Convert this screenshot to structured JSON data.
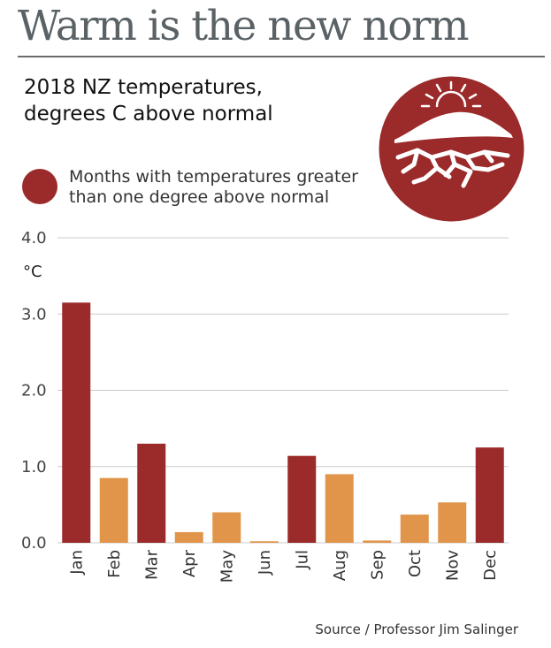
{
  "headline": "Warm is the new norm",
  "subtitle": "2018 NZ temperatures, degrees C above normal",
  "legend": {
    "label": "Months with temperatures greater than one degree above normal",
    "color": "#9b2a2a"
  },
  "colors": {
    "above_one_degree": "#9b2a2a",
    "other": "#e0954a",
    "grid": "#cccccc",
    "badge": "#9b2a2a"
  },
  "badge_icon": "sun-over-cracked-earth-icon",
  "source": "Source / Professor Jim Salinger",
  "chart_data": {
    "type": "bar",
    "categories": [
      "Jan",
      "Feb",
      "Mar",
      "Apr",
      "May",
      "Jun",
      "Jul",
      "Aug",
      "Sep",
      "Oct",
      "Nov",
      "Dec"
    ],
    "values": [
      3.15,
      0.85,
      1.3,
      0.14,
      0.4,
      0.02,
      1.14,
      0.9,
      0.03,
      0.37,
      0.53,
      1.25
    ],
    "above_one_degree": [
      true,
      false,
      true,
      false,
      false,
      false,
      true,
      false,
      false,
      false,
      false,
      true
    ],
    "title": "2018 NZ temperatures, degrees C above normal",
    "ylabel": "°C",
    "ylim": [
      0,
      4
    ],
    "yticks": [
      "0.0",
      "1.0",
      "2.0",
      "3.0",
      "4.0"
    ],
    "grid": true
  }
}
